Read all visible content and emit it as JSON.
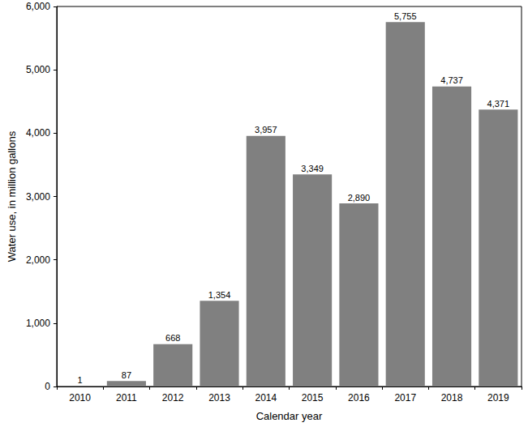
{
  "chart_data": {
    "type": "bar",
    "x_label": "Calendar year",
    "y_label": "Water use, in million gallons",
    "categories": [
      "2010",
      "2011",
      "2012",
      "2013",
      "2014",
      "2015",
      "2016",
      "2017",
      "2018",
      "2019"
    ],
    "values": [
      1,
      87,
      668,
      1354,
      3957,
      3349,
      2890,
      5755,
      4737,
      4371
    ],
    "value_labels": [
      "1",
      "87",
      "668",
      "1,354",
      "3,957",
      "3,349",
      "2,890",
      "5,755",
      "4,737",
      "4,371"
    ],
    "color": "#808080",
    "ylim": [
      0,
      6000
    ],
    "yticks": [
      0,
      {
        "value": 1000,
        "label": "1,000"
      },
      {
        "value": 2000,
        "label": "2,000"
      },
      {
        "value": 3000,
        "label": "3,000"
      },
      {
        "value": 4000,
        "label": "4,000"
      },
      {
        "value": 5000,
        "label": "5,000"
      },
      {
        "value": 6000,
        "label": "6,000"
      }
    ],
    "grid": false,
    "data_labels": true
  }
}
